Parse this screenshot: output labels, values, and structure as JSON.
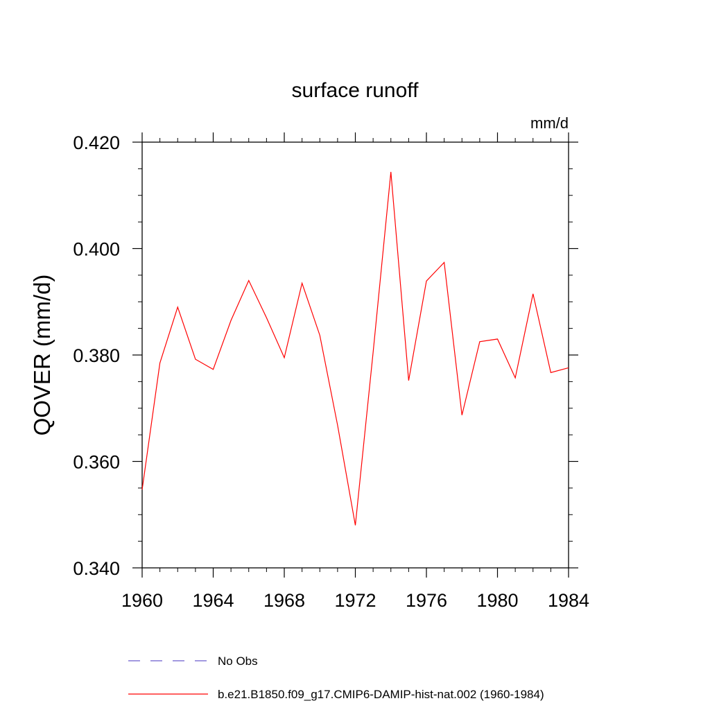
{
  "chart_data": {
    "type": "line",
    "title": "surface runoff",
    "units_label": "mm/d",
    "ylabel": "QOVER  (mm/d)",
    "xlabel": "",
    "xlim": [
      1960,
      1984
    ],
    "ylim": [
      0.34,
      0.42
    ],
    "x_ticks": [
      "1960",
      "1964",
      "1968",
      "1972",
      "1976",
      "1980",
      "1984"
    ],
    "y_ticks": [
      "0.340",
      "0.360",
      "0.380",
      "0.400",
      "0.420"
    ],
    "grid": false,
    "legend_position": "bottom",
    "series": [
      {
        "name": "No Obs",
        "color": "#6a5acd",
        "style": "dashed",
        "x": [],
        "y": []
      },
      {
        "name": "b.e21.B1850.f09_g17.CMIP6-DAMIP-hist-nat.002 (1960-1984)",
        "color": "#ff0000",
        "style": "solid",
        "x": [
          1960,
          1961,
          1962,
          1963,
          1964,
          1965,
          1966,
          1967,
          1968,
          1969,
          1970,
          1971,
          1972,
          1973,
          1974,
          1975,
          1976,
          1977,
          1978,
          1979,
          1980,
          1981,
          1982,
          1983,
          1984
        ],
        "y": [
          0.3547,
          0.3785,
          0.389,
          0.3792,
          0.3773,
          0.3865,
          0.394,
          0.387,
          0.3795,
          0.3935,
          0.3837,
          0.3668,
          0.348,
          0.3805,
          0.4144,
          0.3752,
          0.3939,
          0.3974,
          0.3687,
          0.3825,
          0.383,
          0.3757,
          0.3915,
          0.3767,
          0.3776
        ]
      }
    ]
  }
}
